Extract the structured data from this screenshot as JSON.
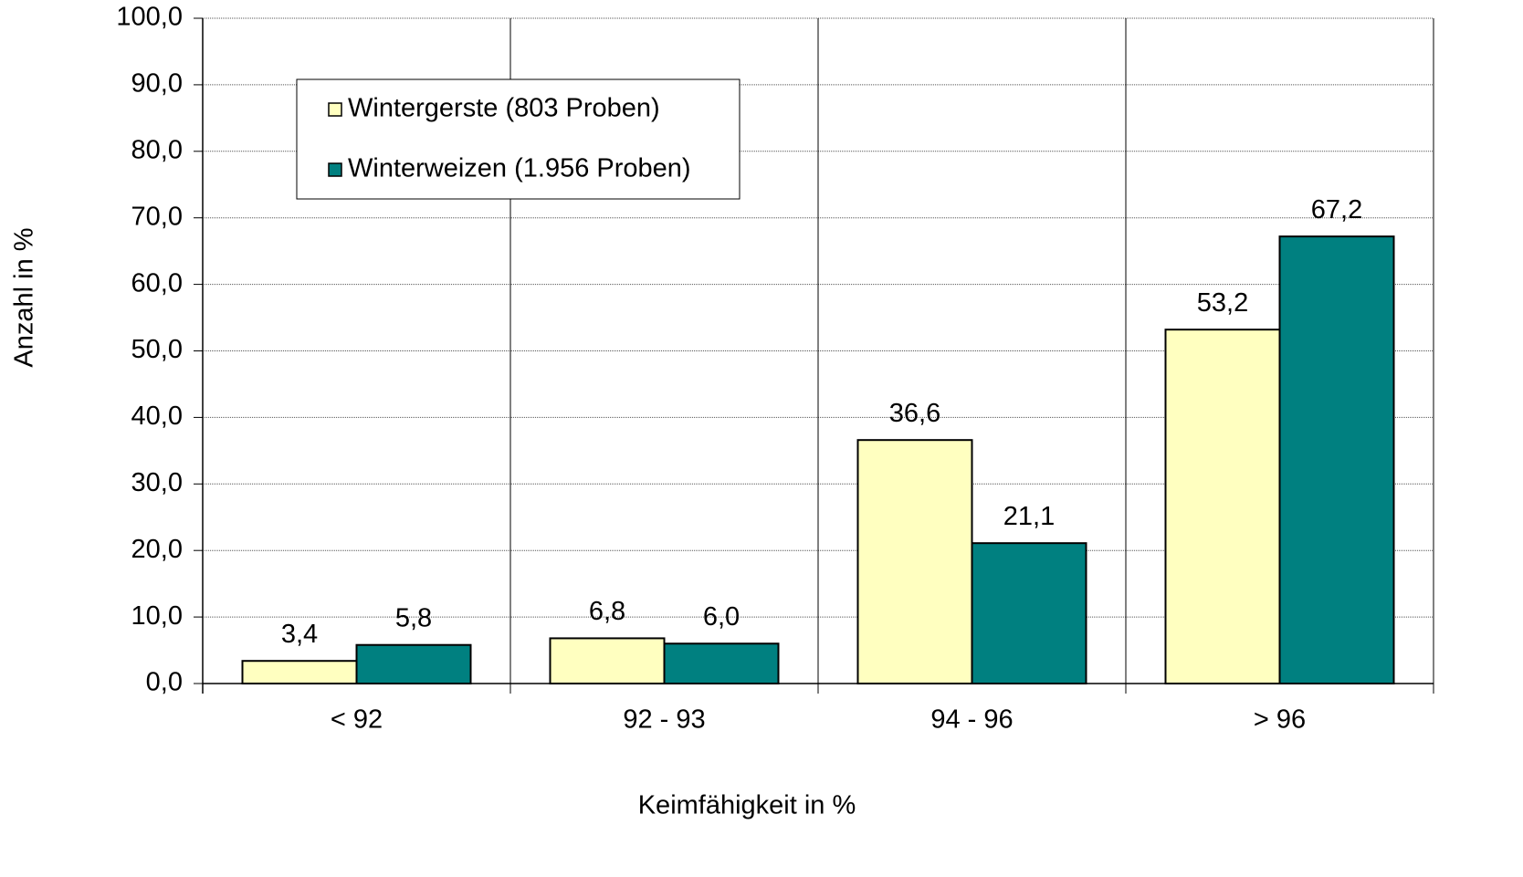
{
  "chart_data": {
    "type": "bar",
    "x_label": "Keimfähigkeit in %",
    "y_label": "Anzahl in %",
    "categories": [
      "< 92",
      "92 - 93",
      "94 - 96",
      "> 96"
    ],
    "series": [
      {
        "name": "Wintergerste (803 Proben)",
        "color": "#ffffc0",
        "values": [
          3.4,
          6.8,
          36.6,
          53.2
        ],
        "value_labels": [
          "3,4",
          "6,8",
          "36,6",
          "53,2"
        ]
      },
      {
        "name": "Winterweizen (1.956 Proben)",
        "color": "#008080",
        "values": [
          5.8,
          6.0,
          21.1,
          67.2
        ],
        "value_labels": [
          "5,8",
          "6,0",
          "21,1",
          "67,2"
        ]
      }
    ],
    "ylim": [
      0,
      100
    ],
    "yticks": [
      {
        "value": 0,
        "label": "0,0"
      },
      {
        "value": 10,
        "label": "10,0"
      },
      {
        "value": 20,
        "label": "20,0"
      },
      {
        "value": 30,
        "label": "30,0"
      },
      {
        "value": 40,
        "label": "40,0"
      },
      {
        "value": 50,
        "label": "50,0"
      },
      {
        "value": 60,
        "label": "60,0"
      },
      {
        "value": 70,
        "label": "70,0"
      },
      {
        "value": 80,
        "label": "80,0"
      },
      {
        "value": 90,
        "label": "90,0"
      },
      {
        "value": 100,
        "label": "100,0"
      }
    ],
    "grid": true,
    "legend": "upper left"
  }
}
